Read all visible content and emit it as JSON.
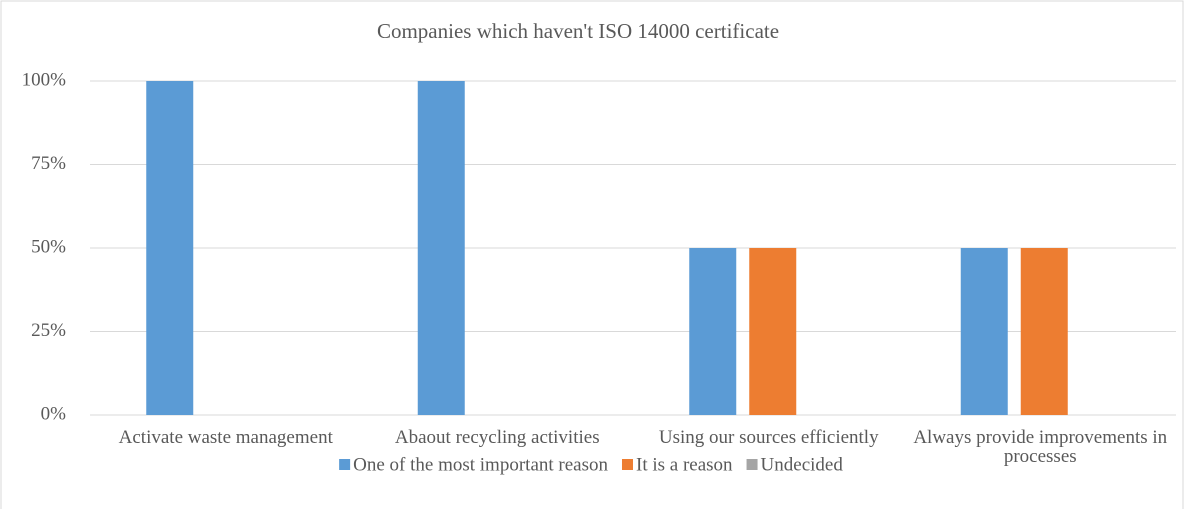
{
  "chart_data": {
    "type": "bar",
    "title": "Companies which haven't ISO 14000 certificate",
    "categories": [
      "Activate waste management",
      "Abaout recycling activities",
      "Using our sources efficiently",
      "Always provide improvements in processes"
    ],
    "series": [
      {
        "name": "One of the most important reason",
        "color": "#5b9bd5",
        "values": [
          100,
          100,
          50,
          50
        ]
      },
      {
        "name": "It is a reason",
        "color": "#ed7d31",
        "values": [
          0,
          0,
          50,
          50
        ]
      },
      {
        "name": "Undecided",
        "color": "#a5a5a5",
        "values": [
          0,
          0,
          0,
          0
        ]
      }
    ],
    "ylim": [
      0,
      100
    ],
    "yticks": [
      {
        "value": 0,
        "label": "0%"
      },
      {
        "value": 25,
        "label": "25%"
      },
      {
        "value": 50,
        "label": "50%"
      },
      {
        "value": 75,
        "label": "75%"
      },
      {
        "value": 100,
        "label": "100%"
      }
    ],
    "grid": true,
    "legend": "bottom"
  }
}
